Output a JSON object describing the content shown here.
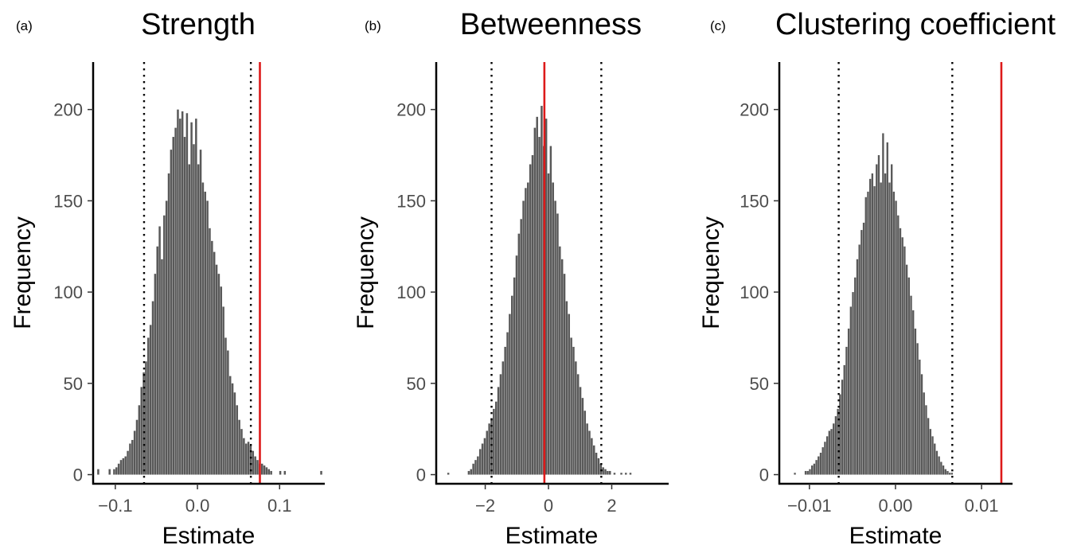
{
  "chart_data": [
    {
      "type": "bar",
      "panel_label": "(a)",
      "title": "Strength",
      "xlabel": "Estimate",
      "ylabel": "Frequency",
      "xlim": [
        -0.127,
        0.155
      ],
      "ylim": [
        -5,
        226
      ],
      "xticks": [
        -0.1,
        0.0,
        0.1
      ],
      "xtick_labels": [
        "−0.1",
        "0.0",
        "0.1"
      ],
      "yticks": [
        0,
        50,
        100,
        150,
        200
      ],
      "ytick_labels": [
        "0",
        "50",
        "100",
        "150",
        "200"
      ],
      "bins": {
        "start": -0.122,
        "width": 0.00277,
        "counts": [
          3,
          0,
          0,
          0,
          0,
          3,
          0,
          3,
          4,
          6,
          8,
          9,
          10,
          13,
          17,
          19,
          24,
          30,
          38,
          48,
          56,
          62,
          75,
          82,
          95,
          110,
          125,
          136,
          118,
          142,
          150,
          165,
          178,
          185,
          190,
          200,
          195,
          199,
          185,
          198,
          170,
          193,
          181,
          195,
          170,
          178,
          160,
          155,
          150,
          135,
          128,
          122,
          115,
          110,
          103,
          92,
          75,
          68,
          54,
          50,
          45,
          38,
          30,
          25,
          20,
          17,
          18,
          16,
          13,
          10,
          8,
          6,
          6,
          5,
          4,
          3,
          2,
          0,
          0,
          0,
          2,
          0,
          2,
          0,
          0,
          0,
          0,
          0,
          0,
          0,
          0,
          0,
          0,
          0,
          0,
          0,
          0,
          0,
          2
        ]
      },
      "reference_lines": [
        {
          "style": "dotted",
          "x": -0.065
        },
        {
          "style": "dotted",
          "x": 0.065
        },
        {
          "style": "solid",
          "x": 0.076
        }
      ],
      "colors": {
        "bar": "#595959",
        "reference": "#dd1a1a",
        "dotted": "#000000"
      }
    },
    {
      "type": "bar",
      "panel_label": "(b)",
      "title": "Betweenness",
      "xlabel": "Estimate",
      "ylabel": "Frequency",
      "xlim": [
        -3.55,
        3.8
      ],
      "ylim": [
        -5,
        226
      ],
      "xticks": [
        -2,
        0,
        2
      ],
      "xtick_labels": [
        "−2",
        "0",
        "2"
      ],
      "yticks": [
        0,
        50,
        100,
        150,
        200
      ],
      "ytick_labels": [
        "0",
        "50",
        "100",
        "150",
        "200"
      ],
      "bins": {
        "start": -3.2,
        "width": 0.072,
        "counts": [
          1,
          0,
          0,
          0,
          0,
          0,
          0,
          0,
          0,
          2,
          3,
          6,
          8,
          10,
          14,
          17,
          20,
          24,
          28,
          31,
          36,
          40,
          48,
          55,
          62,
          70,
          78,
          88,
          98,
          108,
          120,
          132,
          140,
          150,
          157,
          160,
          170,
          175,
          190,
          196,
          185,
          202,
          180,
          195,
          165,
          180,
          160,
          150,
          143,
          125,
          118,
          110,
          95,
          88,
          75,
          70,
          62,
          55,
          48,
          42,
          35,
          28,
          24,
          20,
          16,
          12,
          9,
          6,
          4,
          3,
          2,
          2,
          0,
          1,
          0,
          0,
          1,
          0,
          1,
          0,
          1
        ]
      },
      "reference_lines": [
        {
          "style": "dotted",
          "x": -1.8
        },
        {
          "style": "dotted",
          "x": 1.67
        },
        {
          "style": "solid",
          "x": -0.13
        }
      ],
      "colors": {
        "bar": "#595959",
        "reference": "#dd1a1a",
        "dotted": "#000000"
      }
    },
    {
      "type": "bar",
      "panel_label": "(c)",
      "title": "Clustering coefficient",
      "xlabel": "Estimate",
      "ylabel": "Frequency",
      "xlim": [
        -0.0135,
        0.0136
      ],
      "ylim": [
        -5,
        226
      ],
      "xticks": [
        -0.01,
        0.0,
        0.01
      ],
      "xtick_labels": [
        "−0.01",
        "0.00",
        "0.01"
      ],
      "yticks": [
        0,
        50,
        100,
        150,
        200
      ],
      "ytick_labels": [
        "0",
        "50",
        "100",
        "150",
        "200"
      ],
      "bins": {
        "start": -0.0118,
        "width": 0.00025,
        "counts": [
          1,
          0,
          0,
          0,
          0,
          2,
          2,
          3,
          5,
          6,
          8,
          10,
          12,
          15,
          18,
          21,
          24,
          25,
          28,
          32,
          36,
          44,
          52,
          60,
          70,
          80,
          92,
          100,
          108,
          118,
          126,
          134,
          138,
          152,
          155,
          162,
          165,
          158,
          170,
          175,
          160,
          187,
          165,
          182,
          160,
          170,
          155,
          150,
          142,
          135,
          130,
          125,
          115,
          108,
          98,
          90,
          80,
          72,
          63,
          55,
          45,
          38,
          31,
          25,
          21,
          17,
          13,
          10,
          7,
          5,
          3,
          2,
          1,
          1
        ]
      },
      "reference_lines": [
        {
          "style": "dotted",
          "x": -0.0066
        },
        {
          "style": "dotted",
          "x": 0.0066
        },
        {
          "style": "solid",
          "x": 0.0123
        }
      ],
      "colors": {
        "bar": "#595959",
        "reference": "#dd1a1a",
        "dotted": "#000000"
      }
    }
  ]
}
